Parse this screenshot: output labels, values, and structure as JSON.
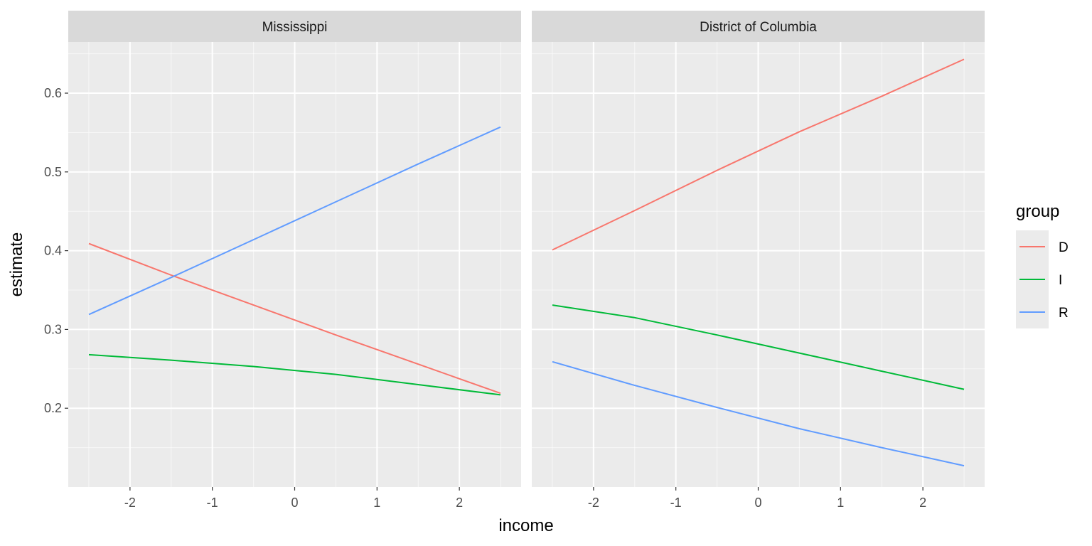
{
  "chart_data": {
    "type": "line",
    "xlabel": "income",
    "ylabel": "estimate",
    "xlim": [
      -2.75,
      2.75
    ],
    "ylim": [
      0.1,
      0.665
    ],
    "x_ticks": [
      -2,
      -1,
      0,
      1,
      2
    ],
    "x_tick_labels": [
      "-2",
      "-1",
      "0",
      "1",
      "2"
    ],
    "y_ticks": [
      0.2,
      0.3,
      0.4,
      0.5,
      0.6
    ],
    "y_tick_labels": [
      "0.2",
      "0.3",
      "0.4",
      "0.5",
      "0.6"
    ],
    "grid": true,
    "legend": {
      "title": "group",
      "position": "right",
      "entries": [
        {
          "key": "D",
          "label": "D",
          "color": "#F8766D"
        },
        {
          "key": "I",
          "label": "I",
          "color": "#00BA38"
        },
        {
          "key": "R",
          "label": "R",
          "color": "#619CFF"
        }
      ]
    },
    "x": [
      -2.5,
      -1.5,
      -0.5,
      0.5,
      1.5,
      2.5
    ],
    "facets": [
      {
        "label": "Mississippi",
        "series": [
          {
            "name": "D",
            "values": [
              0.409,
              0.369,
              0.331,
              0.293,
              0.256,
              0.219
            ]
          },
          {
            "name": "I",
            "values": [
              0.268,
              0.261,
              0.253,
              0.243,
              0.23,
              0.217
            ]
          },
          {
            "name": "R",
            "values": [
              0.319,
              0.366,
              0.414,
              0.462,
              0.51,
              0.557
            ]
          }
        ]
      },
      {
        "label": "District of Columbia",
        "series": [
          {
            "name": "D",
            "values": [
              0.401,
              0.451,
              0.502,
              0.551,
              0.596,
              0.643
            ]
          },
          {
            "name": "I",
            "values": [
              0.331,
              0.315,
              0.293,
              0.27,
              0.247,
              0.224
            ]
          },
          {
            "name": "R",
            "values": [
              0.259,
              0.229,
              0.201,
              0.174,
              0.15,
              0.127
            ]
          }
        ]
      }
    ]
  },
  "colors": {
    "panel_background": "#EBEBEB",
    "strip_background": "#D9D9D9",
    "grid_line": "#FFFFFF"
  }
}
